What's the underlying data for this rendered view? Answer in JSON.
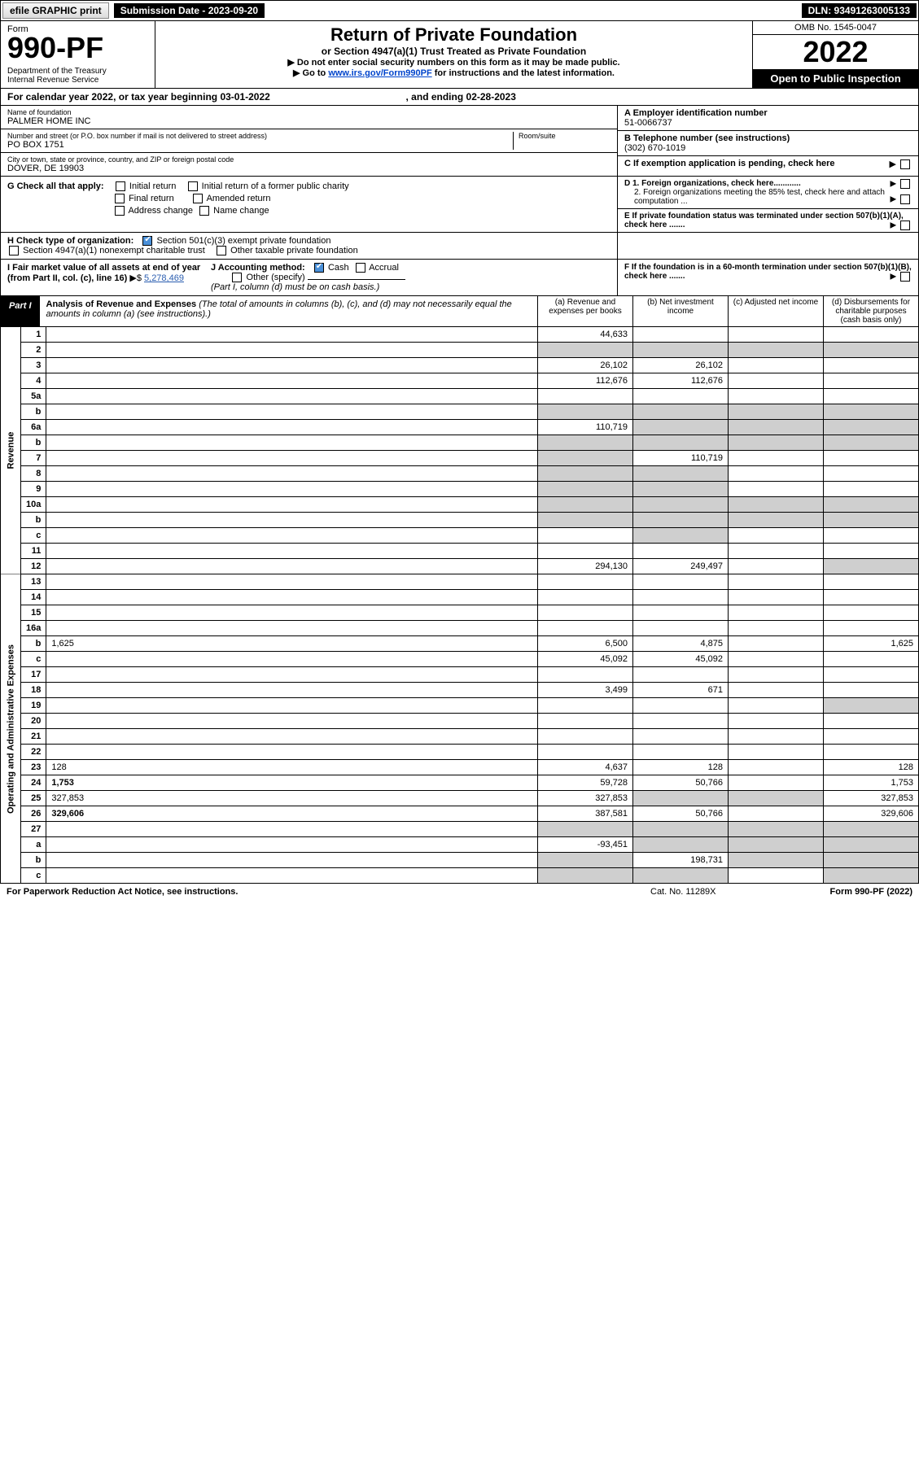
{
  "top": {
    "efile": "efile GRAPHIC print",
    "sub_label": "Submission Date - 2023-09-20",
    "dln": "DLN: 93491263005133"
  },
  "header": {
    "form_label": "Form",
    "form_no": "990-PF",
    "dept": "Department of the Treasury\nInternal Revenue Service",
    "title": "Return of Private Foundation",
    "subtitle": "or Section 4947(a)(1) Trust Treated as Private Foundation",
    "note1": "▶ Do not enter social security numbers on this form as it may be made public.",
    "note2_pre": "▶ Go to ",
    "note2_link": "www.irs.gov/Form990PF",
    "note2_post": " for instructions and the latest information.",
    "omb": "OMB No. 1545-0047",
    "year": "2022",
    "inspect": "Open to Public Inspection"
  },
  "cal": {
    "row": "For calendar year 2022, or tax year beginning 03-01-2022",
    "row_end": ", and ending 02-28-2023"
  },
  "info": {
    "name_lbl": "Name of foundation",
    "name": "PALMER HOME INC",
    "addr_lbl": "Number and street (or P.O. box number if mail is not delivered to street address)",
    "addr": "PO BOX 1751",
    "room_lbl": "Room/suite",
    "city_lbl": "City or town, state or province, country, and ZIP or foreign postal code",
    "city": "DOVER, DE  19903",
    "a_lbl": "A Employer identification number",
    "a_val": "51-0066737",
    "b_lbl": "B Telephone number (see instructions)",
    "b_val": "(302) 670-1019",
    "c_lbl": "C If exemption application is pending, check here",
    "g_lbl": "G Check all that apply:",
    "g_opts": [
      "Initial return",
      "Initial return of a former public charity",
      "Final return",
      "Amended return",
      "Address change",
      "Name change"
    ],
    "d1": "D 1. Foreign organizations, check here............",
    "d2": "2. Foreign organizations meeting the 85% test, check here and attach computation ...",
    "e": "E  If private foundation status was terminated under section 507(b)(1)(A), check here .......",
    "h_lbl": "H Check type of organization:",
    "h1": "Section 501(c)(3) exempt private foundation",
    "h2": "Section 4947(a)(1) nonexempt charitable trust",
    "h3": "Other taxable private foundation",
    "i_lbl": "I Fair market value of all assets at end of year (from Part II, col. (c), line 16)",
    "i_val": "5,278,469",
    "j_lbl": "J Accounting method:",
    "j_cash": "Cash",
    "j_acc": "Accrual",
    "j_other": "Other (specify)",
    "j_note": "(Part I, column (d) must be on cash basis.)",
    "f_lbl": "F  If the foundation is in a 60-month termination under section 507(b)(1)(B), check here ......."
  },
  "part1": {
    "tag": "Part I",
    "title": "Analysis of Revenue and Expenses",
    "title_note": " (The total of amounts in columns (b), (c), and (d) may not necessarily equal the amounts in column (a) (see instructions).)",
    "col_a": "(a)   Revenue and expenses per books",
    "col_b": "(b)   Net investment income",
    "col_c": "(c)   Adjusted net income",
    "col_d": "(d)   Disbursements for charitable purposes (cash basis only)"
  },
  "rev_label": "Revenue",
  "exp_label": "Operating and Administrative Expenses",
  "rows": [
    {
      "n": "1",
      "d": "",
      "a": "44,633",
      "b": "",
      "c": ""
    },
    {
      "n": "2",
      "d": "",
      "a": "",
      "b": "",
      "c": "",
      "shade_all": true
    },
    {
      "n": "3",
      "d": "",
      "a": "26,102",
      "b": "26,102",
      "c": ""
    },
    {
      "n": "4",
      "d": "",
      "a": "112,676",
      "b": "112,676",
      "c": ""
    },
    {
      "n": "5a",
      "d": "",
      "a": "",
      "b": "",
      "c": ""
    },
    {
      "n": "b",
      "d": "",
      "a": "",
      "b": "",
      "c": "",
      "shade_all": true,
      "underline_box": true
    },
    {
      "n": "6a",
      "d": "",
      "a": "110,719",
      "b": "",
      "c": "",
      "shade_bcd": true
    },
    {
      "n": "b",
      "d": "",
      "a": "",
      "b": "",
      "c": "",
      "shade_all": true
    },
    {
      "n": "7",
      "d": "",
      "a": "",
      "b": "110,719",
      "c": "",
      "shade_a": true
    },
    {
      "n": "8",
      "d": "",
      "a": "",
      "b": "",
      "c": "",
      "shade_ab": true
    },
    {
      "n": "9",
      "d": "",
      "a": "",
      "b": "",
      "c": "",
      "shade_ab": true
    },
    {
      "n": "10a",
      "d": "",
      "a": "",
      "b": "",
      "c": "",
      "shade_all": true,
      "box": true
    },
    {
      "n": "b",
      "d": "",
      "a": "",
      "b": "",
      "c": "",
      "shade_all": true,
      "box": true
    },
    {
      "n": "c",
      "d": "",
      "a": "",
      "b": "",
      "c": "",
      "shade_b": true
    },
    {
      "n": "11",
      "d": "",
      "a": "",
      "b": "",
      "c": ""
    },
    {
      "n": "12",
      "d": "",
      "a": "294,130",
      "b": "249,497",
      "c": "",
      "bold": true,
      "shade_d": true
    },
    {
      "n": "13",
      "d": "",
      "a": "",
      "b": "",
      "c": ""
    },
    {
      "n": "14",
      "d": "",
      "a": "",
      "b": "",
      "c": ""
    },
    {
      "n": "15",
      "d": "",
      "a": "",
      "b": "",
      "c": ""
    },
    {
      "n": "16a",
      "d": "",
      "a": "",
      "b": "",
      "c": ""
    },
    {
      "n": "b",
      "d": "1,625",
      "a": "6,500",
      "b": "4,875",
      "c": ""
    },
    {
      "n": "c",
      "d": "",
      "a": "45,092",
      "b": "45,092",
      "c": ""
    },
    {
      "n": "17",
      "d": "",
      "a": "",
      "b": "",
      "c": ""
    },
    {
      "n": "18",
      "d": "",
      "a": "3,499",
      "b": "671",
      "c": ""
    },
    {
      "n": "19",
      "d": "",
      "a": "",
      "b": "",
      "c": "",
      "shade_d": true
    },
    {
      "n": "20",
      "d": "",
      "a": "",
      "b": "",
      "c": ""
    },
    {
      "n": "21",
      "d": "",
      "a": "",
      "b": "",
      "c": ""
    },
    {
      "n": "22",
      "d": "",
      "a": "",
      "b": "",
      "c": ""
    },
    {
      "n": "23",
      "d": "128",
      "a": "4,637",
      "b": "128",
      "c": ""
    },
    {
      "n": "24",
      "d": "1,753",
      "a": "59,728",
      "b": "50,766",
      "c": "",
      "bold": true
    },
    {
      "n": "25",
      "d": "327,853",
      "a": "327,853",
      "b": "",
      "c": "",
      "shade_bc": true
    },
    {
      "n": "26",
      "d": "329,606",
      "a": "387,581",
      "b": "50,766",
      "c": "",
      "bold": true
    },
    {
      "n": "27",
      "d": "",
      "a": "",
      "b": "",
      "c": "",
      "bold": true,
      "shade_all": true
    },
    {
      "n": "a",
      "d": "",
      "a": "-93,451",
      "b": "",
      "c": "",
      "bold": true,
      "shade_bcd": true
    },
    {
      "n": "b",
      "d": "",
      "a": "",
      "b": "198,731",
      "c": "",
      "bold": true,
      "shade_a": true,
      "shade_cd": true
    },
    {
      "n": "c",
      "d": "",
      "a": "",
      "b": "",
      "c": "",
      "bold": true,
      "shade_ab": true,
      "shade_d": true
    }
  ],
  "foot": {
    "l": "For Paperwork Reduction Act Notice, see instructions.",
    "m": "Cat. No. 11289X",
    "r": "Form 990-PF (2022)"
  }
}
